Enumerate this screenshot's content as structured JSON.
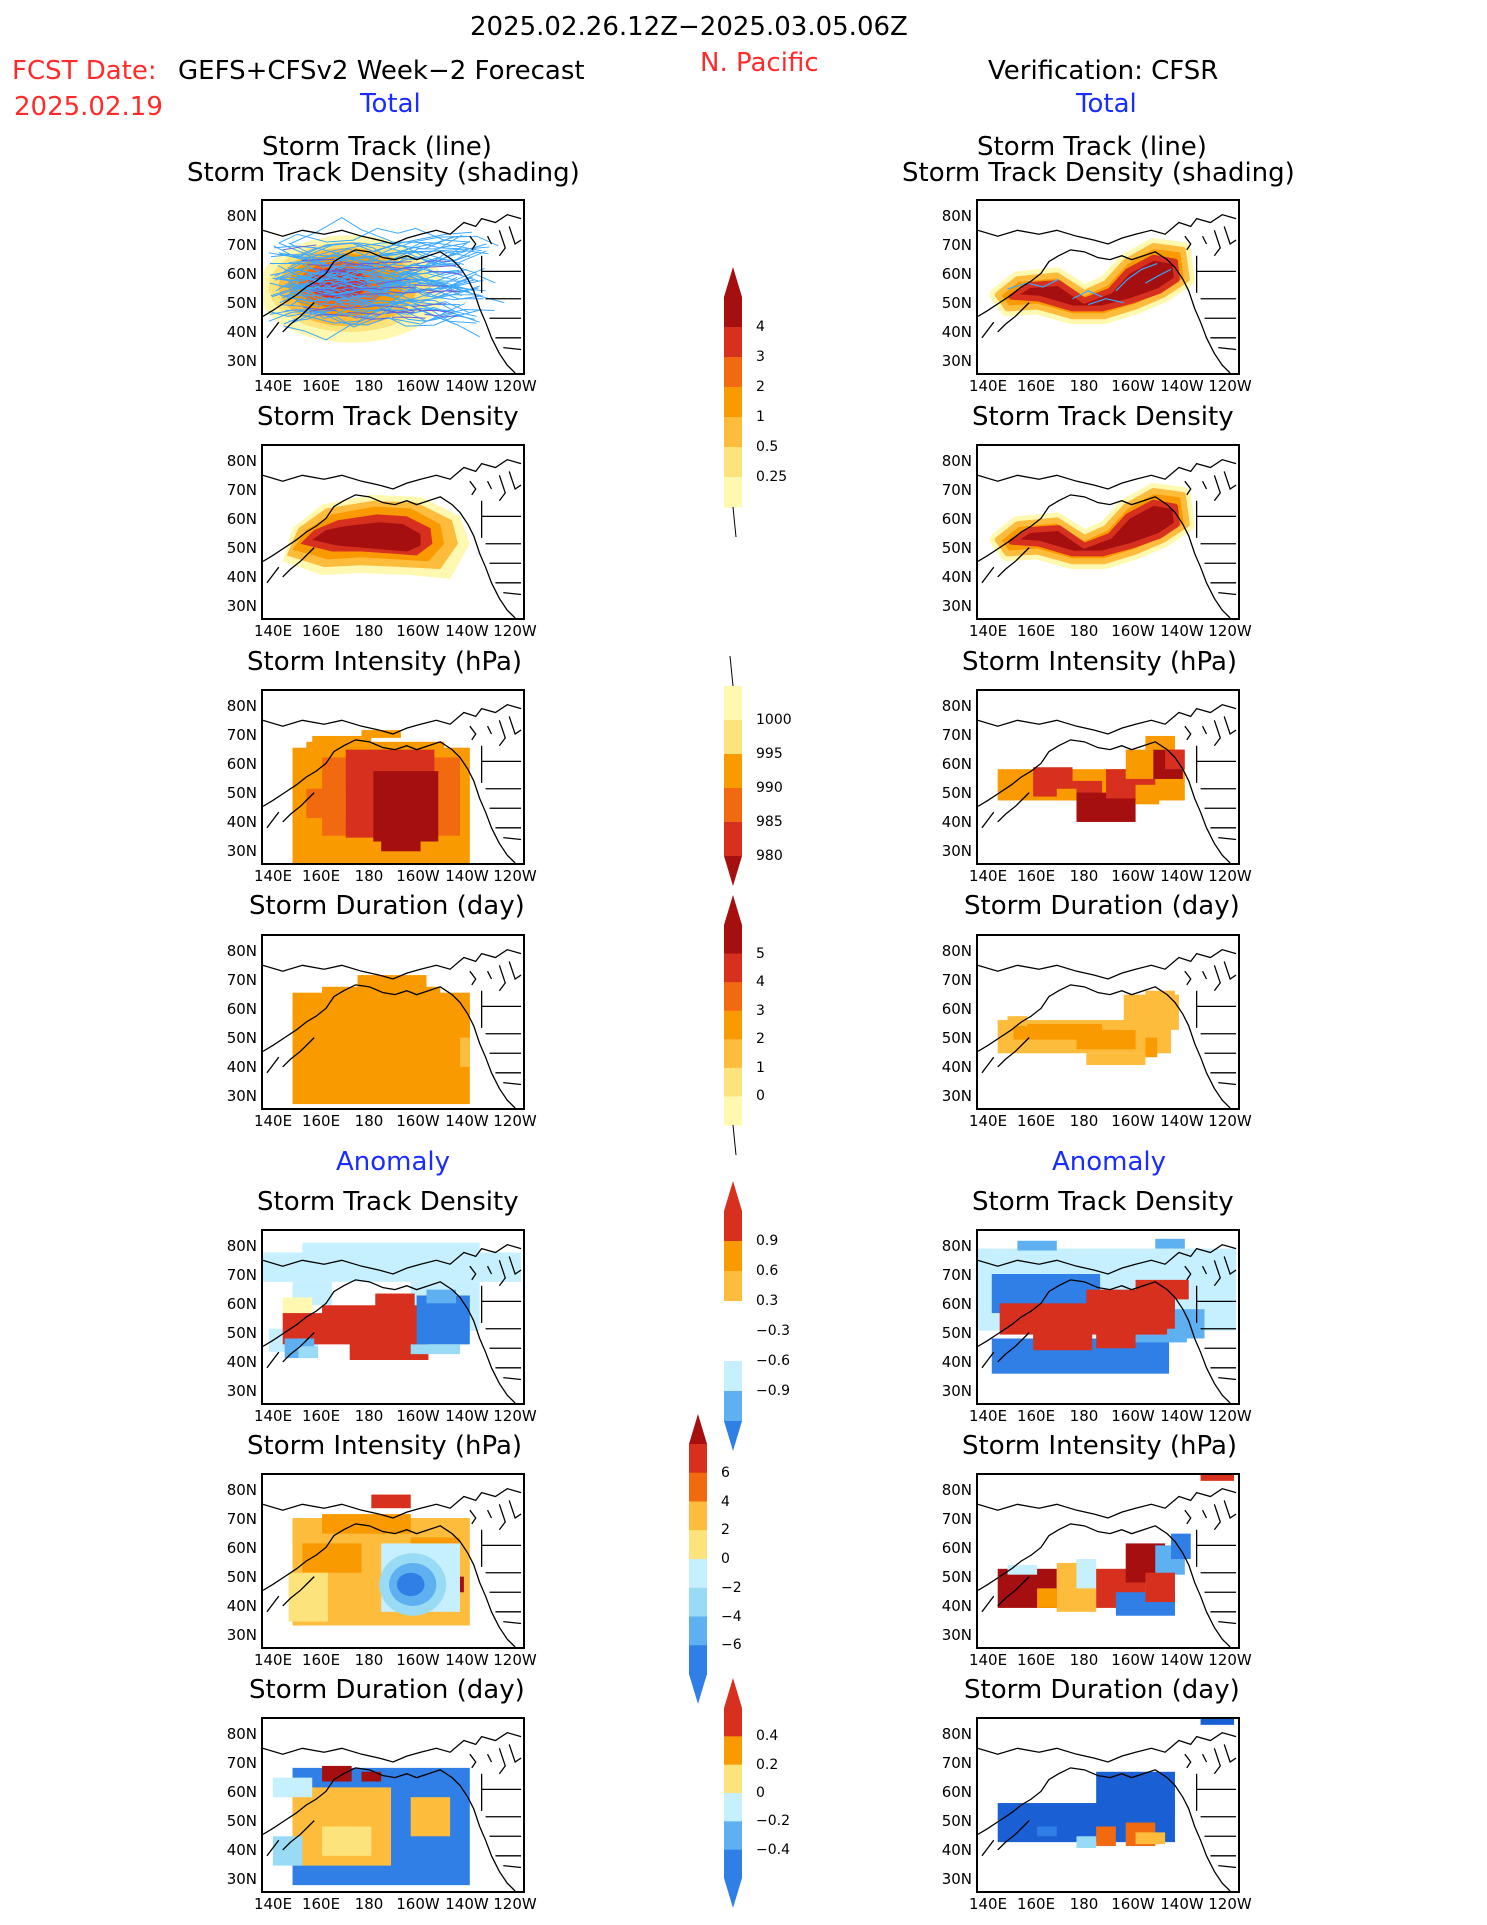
{
  "header": {
    "title": "2025.02.26.12Z−2025.03.05.06Z",
    "region": "N. Pacific",
    "fcst_label": "FCST Date:",
    "fcst_date": "2025.02.19",
    "model": "GEFS+CFSv2 Week−2 Forecast",
    "verification": "Verification: CFSR",
    "total_left": "Total",
    "total_right": "Total",
    "anomaly_left": "Anomaly",
    "anomaly_right": "Anomaly"
  },
  "panels": {
    "track_title_1": "Storm Track (line)",
    "track_title_2": "Storm Track Density (shading)",
    "density": "Storm Track Density",
    "intensity": "Storm Intensity (hPa)",
    "duration": "Storm Duration (day)"
  },
  "axes": {
    "lat": [
      "80N",
      "70N",
      "60N",
      "50N",
      "40N",
      "30N"
    ],
    "lon": [
      "140E",
      "160E",
      "180",
      "160W",
      "140W",
      "120W"
    ]
  },
  "colorbars": {
    "density": [
      "4",
      "3",
      "2",
      "1",
      "0.5",
      "0.25"
    ],
    "intensity": [
      "1000",
      "995",
      "990",
      "985",
      "980"
    ],
    "duration": [
      "5",
      "4",
      "3",
      "2",
      "1",
      "0"
    ],
    "density_anom": [
      "0.9",
      "0.6",
      "0.3",
      "−0.3",
      "−0.6",
      "−0.9"
    ],
    "intensity_anom": [
      "6",
      "4",
      "2",
      "0",
      "−2",
      "−4",
      "−6"
    ],
    "duration_anom": [
      "0.4",
      "0.2",
      "0",
      "−0.2",
      "−0.4"
    ]
  },
  "colors": {
    "warm": [
      "#fff8b0",
      "#fde37c",
      "#fdbc3c",
      "#f99a00",
      "#f26a10",
      "#d7301f",
      "#a50f0f"
    ],
    "cool": [
      "#c6f0ff",
      "#99dbf5",
      "#5fb0f0",
      "#2f7fe6",
      "#1b5fd4"
    ],
    "track_line": "#3ba8ff"
  }
}
